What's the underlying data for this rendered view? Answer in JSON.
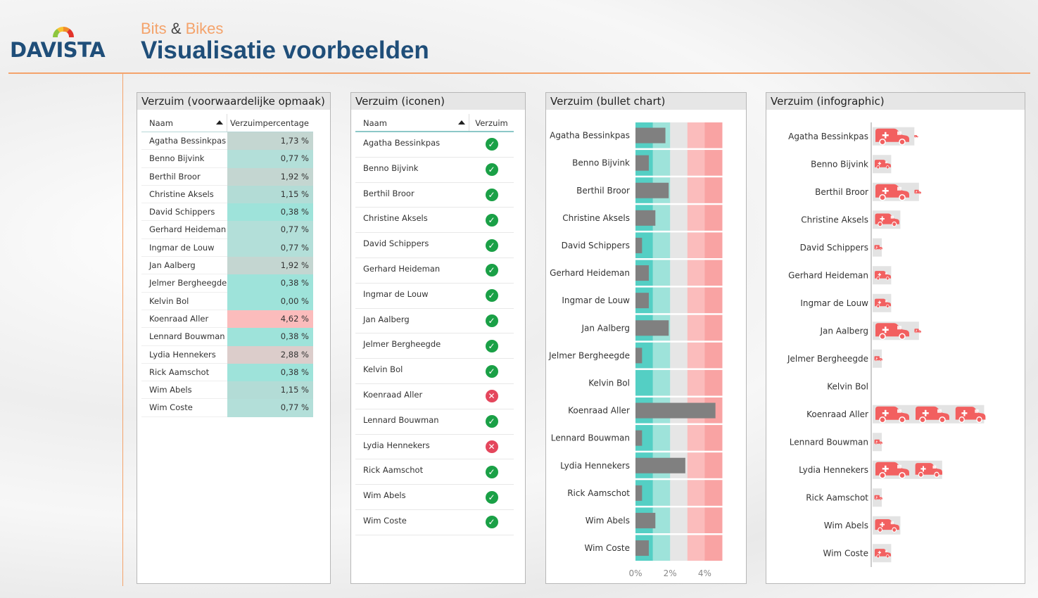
{
  "header": {
    "logo_text": "DAVISTA",
    "brand_left": "Bits",
    "brand_amp": "&",
    "brand_right": "Bikes",
    "title": "Visualisatie voorbeelden"
  },
  "colors": {
    "teal_good": "#9ee3da",
    "teal_mid": "#b9d9d4",
    "grey_mid": "#cdd6d3",
    "red_bad": "#fbbcbc",
    "bar": "#808080",
    "ambulance": "#f26060",
    "accent": "#f4a36b",
    "title": "#1f4e79"
  },
  "panels": {
    "conditional": {
      "title": "Verzuim (voorwaardelijke opmaak)",
      "col_name": "Naam",
      "col_value": "Verzuimpercentage"
    },
    "icons": {
      "title": "Verzuim (iconen)",
      "col_name": "Naam",
      "col_icon": "Verzuim"
    },
    "bullet": {
      "title": "Verzuim (bullet chart)"
    },
    "infographic": {
      "title": "Verzuim (infographic)"
    }
  },
  "employees": [
    {
      "name": "Agatha Bessinkpas",
      "pct_label": "1,73 %",
      "status": "ok"
    },
    {
      "name": "Benno Bijvink",
      "pct_label": "0,77 %",
      "status": "ok"
    },
    {
      "name": "Berthil Broor",
      "pct_label": "1,92 %",
      "status": "ok"
    },
    {
      "name": "Christine Aksels",
      "pct_label": "1,15 %",
      "status": "ok"
    },
    {
      "name": "David Schippers",
      "pct_label": "0,38 %",
      "status": "ok"
    },
    {
      "name": "Gerhard Heideman",
      "pct_label": "0,77 %",
      "status": "ok"
    },
    {
      "name": "Ingmar de Louw",
      "pct_label": "0,77 %",
      "status": "ok"
    },
    {
      "name": "Jan Aalberg",
      "pct_label": "1,92 %",
      "status": "ok"
    },
    {
      "name": "Jelmer Bergheegde",
      "pct_label": "0,38 %",
      "status": "ok"
    },
    {
      "name": "Kelvin Bol",
      "pct_label": "0,00 %",
      "status": "ok"
    },
    {
      "name": "Koenraad Aller",
      "pct_label": "4,62 %",
      "status": "bad"
    },
    {
      "name": "Lennard Bouwman",
      "pct_label": "0,38 %",
      "status": "ok"
    },
    {
      "name": "Lydia Hennekers",
      "pct_label": "2,88 %",
      "status": "bad"
    },
    {
      "name": "Rick Aamschot",
      "pct_label": "0,38 %",
      "status": "ok"
    },
    {
      "name": "Wim Abels",
      "pct_label": "1,15 %",
      "status": "ok"
    },
    {
      "name": "Wim Coste",
      "pct_label": "0,77 %",
      "status": "ok"
    }
  ],
  "chart_data": [
    {
      "type": "bar",
      "categories": [
        "Agatha Bessinkpas",
        "Benno Bijvink",
        "Berthil Broor",
        "Christine Aksels",
        "David Schippers",
        "Gerhard Heideman",
        "Ingmar de Louw",
        "Jan Aalberg",
        "Jelmer Bergheegde",
        "Kelvin Bol",
        "Koenraad Aller",
        "Lennard Bouwman",
        "Lydia Hennekers",
        "Rick Aamschot",
        "Wim Abels",
        "Wim Coste"
      ],
      "values": [
        1.73,
        0.77,
        1.92,
        1.15,
        0.38,
        0.77,
        0.77,
        1.92,
        0.38,
        0.0,
        4.62,
        0.38,
        2.88,
        0.38,
        1.15,
        0.77
      ],
      "bands": [
        0,
        1,
        2,
        3,
        4,
        5
      ],
      "band_colors": [
        "#54cfc4",
        "#9ee3da",
        "#e6e6e6",
        "#fbbcbc",
        "#f9a3a3"
      ],
      "xticks": [
        "0%",
        "2%",
        "4%"
      ],
      "xlim": [
        0,
        5
      ]
    },
    {
      "type": "bar",
      "style": "pictogram",
      "categories": [
        "Agatha Bessinkpas",
        "Benno Bijvink",
        "Berthil Broor",
        "Christine Aksels",
        "David Schippers",
        "Gerhard Heideman",
        "Ingmar de Louw",
        "Jan Aalberg",
        "Jelmer Bergheegde",
        "Kelvin Bol",
        "Koenraad Aller",
        "Lennard Bouwman",
        "Lydia Hennekers",
        "Rick Aamschot",
        "Wim Abels",
        "Wim Coste"
      ],
      "values": [
        1.73,
        0.77,
        1.92,
        1.15,
        0.38,
        0.77,
        0.77,
        1.92,
        0.38,
        0.0,
        4.62,
        0.38,
        2.88,
        0.38,
        1.15,
        0.77
      ],
      "icon": "ambulance-icon"
    }
  ]
}
